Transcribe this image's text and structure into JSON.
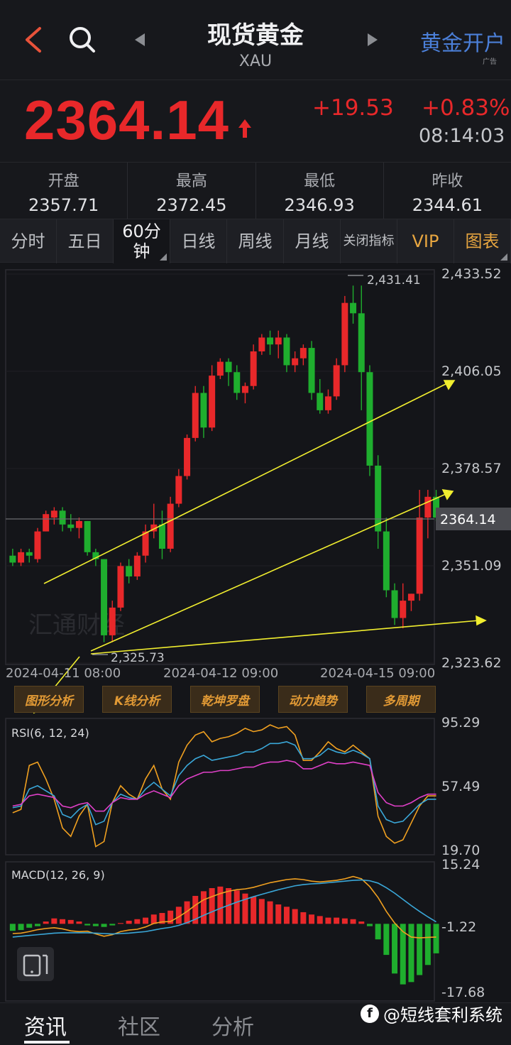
{
  "header": {
    "title": "现货黄金",
    "subtitle": "XAU",
    "ad_button": "黄金开户",
    "ad_tag": "广告"
  },
  "quote": {
    "price": "2364.14",
    "change": "+19.53",
    "change_pct": "+0.83%",
    "time": "08:14:03",
    "color_up": "#e8282a"
  },
  "stats": [
    {
      "label": "开盘",
      "value": "2357.71"
    },
    {
      "label": "最高",
      "value": "2372.45"
    },
    {
      "label": "最低",
      "value": "2346.93"
    },
    {
      "label": "昨收",
      "value": "2344.61"
    }
  ],
  "tabs": [
    {
      "label": "分时"
    },
    {
      "label": "五日"
    },
    {
      "label": "60分钟"
    },
    {
      "label": "日线"
    },
    {
      "label": "周线"
    },
    {
      "label": "月线"
    },
    {
      "label": "关闭指标"
    },
    {
      "label": "VIP"
    },
    {
      "label": "图表"
    }
  ],
  "tools": [
    "图形分析",
    "K线分析",
    "乾坤罗盘",
    "动力趋势",
    "多周期"
  ],
  "chart_data": {
    "type": "candlestick",
    "price_axis": [
      "2,433.52",
      "2,406.05",
      "2,378.57",
      "2,351.09",
      "2,323.62"
    ],
    "last_price_label": "2364.14",
    "high_label": "2,431.41",
    "low_label": "2,325.73",
    "time_labels": [
      "2024-04-11 08:00",
      "2024-04-12 09:00",
      "2024-04-15 09:00"
    ],
    "ylim": [
      2323.62,
      2433.52
    ],
    "watermark": "汇通财经",
    "candles": [
      [
        2353,
        2355,
        2350,
        2351
      ],
      [
        2351,
        2355,
        2350,
        2354
      ],
      [
        2354,
        2355,
        2351,
        2353
      ],
      [
        2352,
        2361,
        2351,
        2360
      ],
      [
        2360,
        2366,
        2360,
        2365
      ],
      [
        2364,
        2367,
        2362,
        2366
      ],
      [
        2366,
        2367,
        2360,
        2362
      ],
      [
        2362,
        2365,
        2360,
        2361
      ],
      [
        2361,
        2364,
        2358,
        2363
      ],
      [
        2363,
        2363,
        2353,
        2354
      ],
      [
        2354,
        2355,
        2350,
        2352
      ],
      [
        2352,
        2352,
        2328,
        2330
      ],
      [
        2330,
        2340,
        2328,
        2338
      ],
      [
        2338,
        2351,
        2337,
        2350
      ],
      [
        2350,
        2352,
        2345,
        2347
      ],
      [
        2347,
        2354,
        2346,
        2353
      ],
      [
        2353,
        2362,
        2351,
        2360
      ],
      [
        2360,
        2368,
        2358,
        2362
      ],
      [
        2362,
        2366,
        2352,
        2355
      ],
      [
        2355,
        2370,
        2354,
        2368
      ],
      [
        2368,
        2378,
        2367,
        2376
      ],
      [
        2376,
        2388,
        2375,
        2387
      ],
      [
        2387,
        2402,
        2386,
        2400
      ],
      [
        2400,
        2402,
        2387,
        2390
      ],
      [
        2390,
        2408,
        2389,
        2405
      ],
      [
        2405,
        2410,
        2404,
        2409
      ],
      [
        2409,
        2410,
        2402,
        2406
      ],
      [
        2406,
        2408,
        2398,
        2400
      ],
      [
        2400,
        2403,
        2397,
        2402
      ],
      [
        2402,
        2414,
        2401,
        2412
      ],
      [
        2412,
        2417,
        2411,
        2416
      ],
      [
        2416,
        2418,
        2411,
        2414
      ],
      [
        2414,
        2418,
        2410,
        2416
      ],
      [
        2416,
        2417,
        2406,
        2408
      ],
      [
        2408,
        2412,
        2406,
        2410
      ],
      [
        2410,
        2414,
        2408,
        2413
      ],
      [
        2413,
        2415,
        2398,
        2400
      ],
      [
        2400,
        2404,
        2394,
        2395
      ],
      [
        2395,
        2401,
        2394,
        2399
      ],
      [
        2399,
        2410,
        2398,
        2408
      ],
      [
        2408,
        2428,
        2406,
        2426
      ],
      [
        2426,
        2431,
        2420,
        2423
      ],
      [
        2423,
        2431,
        2395,
        2406
      ],
      [
        2406,
        2408,
        2376,
        2379
      ],
      [
        2379,
        2382,
        2355,
        2360
      ],
      [
        2360,
        2364,
        2341,
        2343
      ],
      [
        2343,
        2345,
        2333,
        2335
      ],
      [
        2335,
        2345,
        2332,
        2340
      ],
      [
        2340,
        2342,
        2337,
        2342
      ],
      [
        2342,
        2372,
        2340,
        2364
      ],
      [
        2364,
        2372,
        2358,
        2370
      ],
      [
        2370,
        2372,
        2363,
        2364
      ]
    ],
    "indicators": [
      {
        "name": "RSI(6, 12, 24)",
        "axis": [
          "95.29",
          "57.49",
          "19.70"
        ],
        "ylim": [
          19.7,
          95.29
        ],
        "series": [
          {
            "color": "#f0a020",
            "values": [
              42,
              44,
              70,
              72,
              62,
              50,
              33,
              28,
              40,
              47,
              22,
              25,
              48,
              58,
              53,
              50,
              62,
              70,
              56,
              50,
              72,
              82,
              88,
              90,
              84,
              86,
              87,
              89,
              92,
              90,
              91,
              94,
              92,
              93,
              88,
              73,
              73,
              78,
              84,
              80,
              78,
              82,
              78,
              74,
              40,
              28,
              24,
              26,
              36,
              46,
              52,
              52
            ]
          },
          {
            "color": "#3aa7d8",
            "values": [
              45,
              46,
              56,
              58,
              55,
              52,
              41,
              39,
              44,
              47,
              35,
              37,
              48,
              53,
              51,
              50,
              56,
              60,
              56,
              52,
              64,
              70,
              74,
              76,
              73,
              74,
              75,
              76,
              78,
              78,
              80,
              83,
              83,
              84,
              82,
              74,
              74,
              76,
              80,
              78,
              77,
              79,
              77,
              74,
              46,
              38,
              36,
              37,
              42,
              47,
              50,
              50
            ]
          },
          {
            "color": "#e040c8",
            "values": [
              46,
              47,
              52,
              53,
              52,
              51,
              46,
              45,
              47,
              48,
              43,
              43,
              48,
              51,
              50,
              50,
              53,
              55,
              53,
              51,
              58,
              62,
              64,
              66,
              66,
              67,
              67,
              68,
              69,
              69,
              71,
              72,
              72,
              73,
              72,
              68,
              68,
              70,
              72,
              71,
              71,
              72,
              71,
              70,
              54,
              48,
              46,
              46,
              48,
              51,
              53,
              53
            ]
          }
        ]
      },
      {
        "name": "MACD(12, 26, 9)",
        "axis": [
          "15.24",
          "-1.22",
          "-17.68"
        ],
        "ylim": [
          -17.68,
          15.24
        ],
        "dif": [
          -2.5,
          -2.4,
          -2.0,
          -1.5,
          -1.2,
          -1.0,
          -1.3,
          -1.8,
          -2.0,
          -1.9,
          -2.6,
          -3.2,
          -2.8,
          -2.0,
          -1.6,
          -1.4,
          -0.8,
          0.1,
          0.5,
          0.6,
          1.8,
          3.2,
          4.8,
          6.2,
          7.0,
          7.8,
          8.4,
          8.8,
          9.0,
          9.4,
          10.0,
          10.6,
          11.0,
          11.4,
          11.6,
          11.4,
          11.0,
          10.8,
          11.0,
          11.2,
          11.6,
          12.2,
          11.6,
          9.6,
          6.8,
          3.2,
          0.2,
          -2.0,
          -3.4,
          -3.6,
          -3.5,
          -3.4
        ],
        "dea": [
          -3.4,
          -3.2,
          -3.0,
          -2.8,
          -2.6,
          -2.4,
          -2.3,
          -2.3,
          -2.3,
          -2.3,
          -2.4,
          -2.5,
          -2.6,
          -2.5,
          -2.4,
          -2.2,
          -2.0,
          -1.6,
          -1.2,
          -0.9,
          -0.4,
          0.3,
          1.2,
          2.2,
          3.1,
          4.0,
          4.8,
          5.6,
          6.3,
          7.0,
          7.6,
          8.2,
          8.8,
          9.3,
          9.8,
          10.1,
          10.3,
          10.4,
          10.6,
          10.8,
          11.0,
          11.2,
          11.3,
          11.1,
          10.5,
          9.3,
          7.9,
          6.3,
          4.7,
          3.2,
          1.8,
          0.5
        ],
        "hist": [
          -1.8,
          -1.6,
          -1.0,
          -0.6,
          0.6,
          1.4,
          1.2,
          1.0,
          0.6,
          -0.4,
          -0.6,
          -0.8,
          -0.4,
          0.2,
          0.8,
          1.2,
          1.6,
          2.4,
          2.8,
          3.4,
          4.4,
          5.8,
          7.2,
          8.4,
          9.2,
          9.6,
          9.2,
          8.6,
          7.8,
          7.0,
          6.4,
          5.8,
          5.0,
          4.4,
          3.8,
          3.0,
          2.4,
          2.0,
          1.6,
          1.6,
          1.4,
          1.2,
          0.6,
          -0.6,
          -4.0,
          -8.0,
          -12.8,
          -15.6,
          -15.0,
          -13.2,
          -10.6,
          -7.6
        ]
      }
    ]
  },
  "bottom_nav": [
    "资讯",
    "社区",
    "分析"
  ],
  "watermark": "@短线套利系统"
}
